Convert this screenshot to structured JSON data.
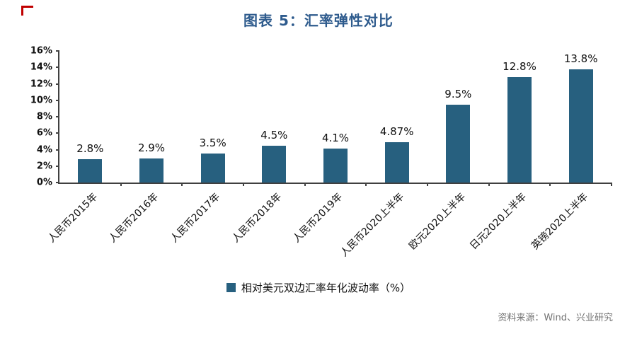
{
  "title": "图表 5：汇率弹性对比",
  "chart_data": {
    "type": "bar",
    "title": "图表 5：汇率弹性对比",
    "categories": [
      "人民币2015年",
      "人民币2016年",
      "人民币2017年",
      "人民币2018年",
      "人民币2019年",
      "人民币2020上半年",
      "欧元2020上半年",
      "日元2020上半年",
      "英镑2020上半年"
    ],
    "values": [
      2.8,
      2.9,
      3.5,
      4.5,
      4.1,
      4.87,
      9.5,
      12.8,
      13.8
    ],
    "value_labels": [
      "2.8%",
      "2.9%",
      "3.5%",
      "4.5%",
      "4.1%",
      "4.87%",
      "9.5%",
      "12.8%",
      "13.8%"
    ],
    "ylim": [
      0,
      16
    ],
    "ytick_step": 2,
    "ytick_labels": [
      "0%",
      "2%",
      "4%",
      "6%",
      "8%",
      "10%",
      "12%",
      "14%",
      "16%"
    ],
    "grid": false,
    "legend": [
      "相对美元双边汇率年化波动率（%）"
    ],
    "legend_position": "bottom",
    "bar_color": "#27607f"
  },
  "source": "资料来源：Wind、兴业研究",
  "colors": {
    "title": "#2e5b8d",
    "bar": "#27607f",
    "corner_mark": "#c00000",
    "axis": "#404040",
    "source_text": "#737373"
  }
}
